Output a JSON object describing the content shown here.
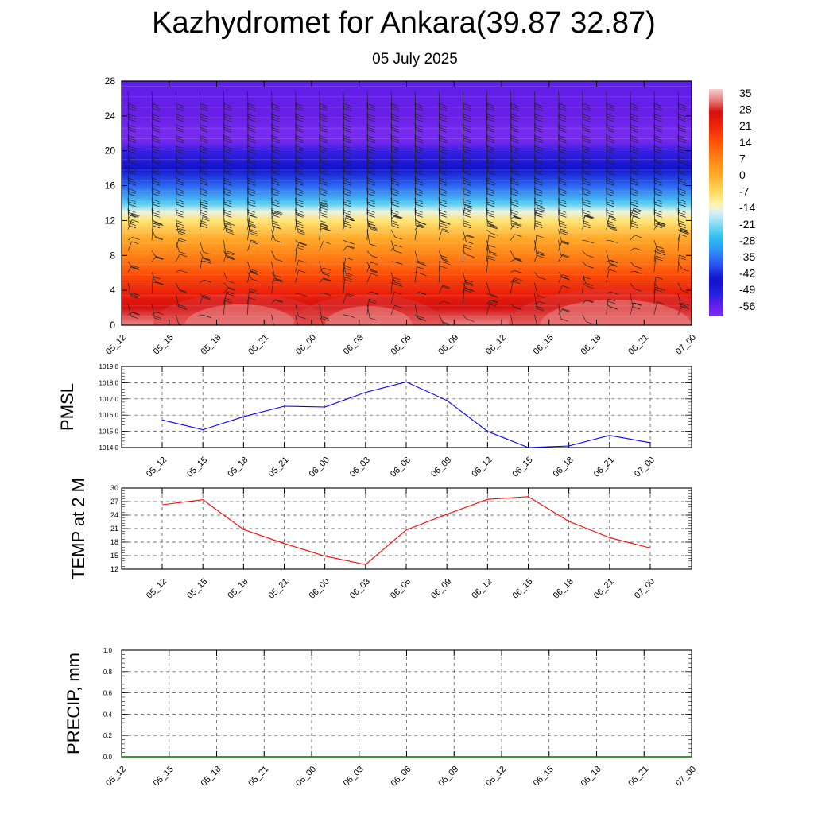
{
  "title": "Kazhydromet for Ankara(39.87 32.87)",
  "subtitle": "05 July 2025",
  "colorbar": {
    "labels": [
      "35",
      "28",
      "21",
      "14",
      "7",
      "0",
      "-7",
      "-14",
      "-21",
      "-28",
      "-35",
      "-42",
      "-49",
      "-56"
    ]
  },
  "chart_data": [
    {
      "type": "heatmap",
      "title": "",
      "xlabel": "",
      "ylabel": "",
      "x_tick_labels": [
        "05_12",
        "05_15",
        "05_18",
        "05_21",
        "06_00",
        "06_03",
        "06_06",
        "06_09",
        "06_12",
        "06_15",
        "06_18",
        "06_21",
        "07_00"
      ],
      "y_ticks": [
        0,
        4,
        8,
        12,
        16,
        20,
        24,
        28
      ],
      "ylim": [
        0,
        28
      ],
      "colorbar_range": [
        -60,
        38
      ],
      "temperature_profile": {
        "height": [
          0,
          2,
          4,
          6,
          8,
          10,
          12,
          13,
          14,
          16,
          18,
          20,
          21,
          22,
          24,
          28
        ],
        "value": [
          34,
          28,
          22,
          15,
          8,
          1,
          -8,
          -14,
          -24,
          -36,
          -45,
          -52,
          -58,
          -59,
          -56,
          -55
        ]
      },
      "wind_barbs": true
    },
    {
      "type": "line",
      "ylabel": "PMSL",
      "x": [
        "05_12",
        "05_15",
        "05_18",
        "05_21",
        "06_00",
        "06_03",
        "06_06",
        "06_09",
        "06_12",
        "06_15",
        "06_18",
        "06_21",
        "07_00"
      ],
      "y_tick_labels": [
        "1014.0",
        "1015.0",
        "1016.0",
        "1017.0",
        "1018.0",
        "1019.0"
      ],
      "ylim": [
        1014,
        1019
      ],
      "series": [
        {
          "values": [
            1015.7,
            1015.1,
            1015.9,
            1016.55,
            1016.5,
            1017.4,
            1018.05,
            1016.9,
            1015.0,
            1014.0,
            1014.1,
            1014.75,
            1014.3
          ],
          "color": "#0000ff"
        }
      ],
      "grid": true
    },
    {
      "type": "line",
      "ylabel": "TEMP at 2 M",
      "x": [
        "05_12",
        "05_15",
        "05_18",
        "05_21",
        "06_00",
        "06_03",
        "06_06",
        "06_09",
        "06_12",
        "06_15",
        "06_18",
        "06_21",
        "07_00"
      ],
      "y_tick_labels": [
        "12",
        "15",
        "18",
        "21",
        "24",
        "27",
        "30"
      ],
      "ylim": [
        12,
        30
      ],
      "series": [
        {
          "values": [
            26.3,
            27.4,
            20.8,
            17.7,
            14.9,
            13.0,
            20.7,
            24.2,
            27.5,
            28.1,
            22.6,
            19.0,
            16.7
          ],
          "color": "#ff0000"
        }
      ],
      "grid": true
    },
    {
      "type": "line",
      "ylabel": "PRECIP, mm",
      "x": [
        "05_12",
        "05_15",
        "05_18",
        "05_21",
        "06_00",
        "06_03",
        "06_06",
        "06_09",
        "06_12",
        "06_15",
        "06_18",
        "06_21",
        "07_00"
      ],
      "y_tick_labels": [
        "0.0",
        "0.2",
        "0.4",
        "0.6",
        "0.8",
        "1.0"
      ],
      "ylim": [
        0,
        1
      ],
      "series": [
        {
          "values": [
            0,
            0,
            0,
            0,
            0,
            0,
            0,
            0,
            0,
            0,
            0,
            0,
            0
          ],
          "color": "#008000"
        }
      ],
      "grid": true
    }
  ]
}
